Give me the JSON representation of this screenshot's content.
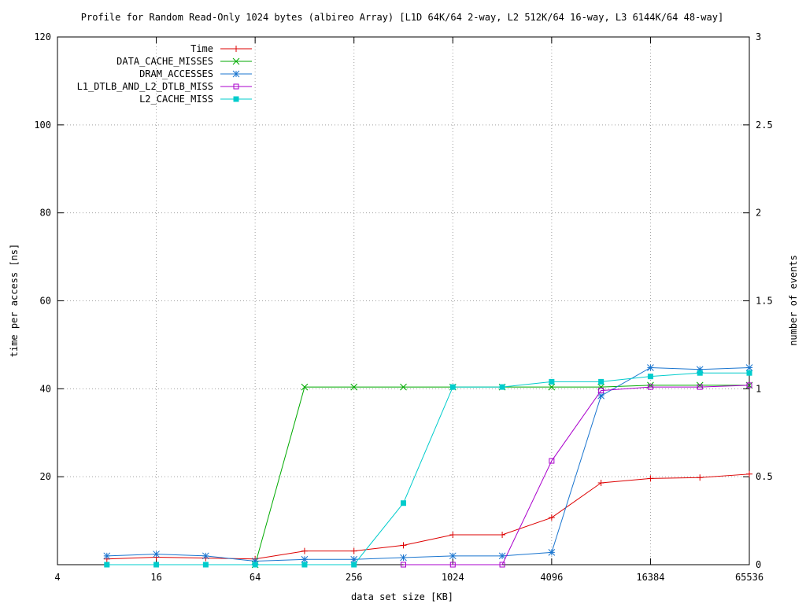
{
  "chart_data": {
    "type": "line",
    "title": "Profile for Random Read-Only 1024 bytes (albireo Array) [L1D 64K/64 2-way, L2 512K/64 16-way, L3 6144K/64 48-way]",
    "xlabel": "data set size [KB]",
    "ylabel": "time per access [ns]",
    "y2label": "number of events",
    "xscale": "log2",
    "xlim": [
      4,
      65536
    ],
    "ylim": [
      0,
      120
    ],
    "y2lim": [
      0,
      3
    ],
    "x_ticks": [
      "4",
      "16",
      "64",
      "256",
      "1024",
      "4096",
      "16384",
      "65536"
    ],
    "y_ticks": [
      "20",
      "40",
      "60",
      "80",
      "100",
      "120"
    ],
    "y2_ticks": [
      "0",
      "0.5",
      "1",
      "1.5",
      "2",
      "2.5",
      "3"
    ],
    "grid": true,
    "legend_position": "top-left",
    "x": [
      8,
      16,
      32,
      64,
      128,
      256,
      512,
      1024,
      2048,
      4096,
      8192,
      16384,
      32768,
      65536
    ],
    "series": [
      {
        "name": "Time",
        "axis": "y",
        "color": "#dd0000",
        "marker": "plus",
        "values": [
          1.3,
          1.7,
          1.5,
          1.3,
          3.1,
          3.1,
          4.4,
          6.8,
          6.8,
          10.7,
          18.6,
          19.6,
          19.8,
          20.6
        ]
      },
      {
        "name": "DATA_CACHE_MISSES",
        "axis": "y2",
        "color": "#00aa00",
        "marker": "x",
        "values": [
          null,
          null,
          null,
          0.0,
          1.01,
          1.01,
          1.01,
          1.01,
          1.01,
          1.01,
          1.01,
          1.02,
          1.02,
          1.02
        ]
      },
      {
        "name": "DRAM_ACCESSES",
        "axis": "y2",
        "color": "#1a75cf",
        "marker": "star",
        "values": [
          0.05,
          0.06,
          0.05,
          0.02,
          0.03,
          0.03,
          0.04,
          0.05,
          0.05,
          0.07,
          0.96,
          1.12,
          1.11,
          1.12
        ]
      },
      {
        "name": "L1_DTLB_AND_L2_DTLB_MISS",
        "axis": "y2",
        "color": "#aa00cc",
        "marker": "open-square",
        "values": [
          null,
          null,
          null,
          null,
          null,
          null,
          0.0,
          0.0,
          0.0,
          0.59,
          0.99,
          1.01,
          1.01,
          1.02
        ]
      },
      {
        "name": "L2_CACHE_MISS",
        "axis": "y2",
        "color": "#00cccc",
        "marker": "filled-square",
        "values": [
          0.0,
          0.0,
          0.0,
          0.0,
          0.0,
          0.0,
          0.35,
          1.01,
          1.01,
          1.04,
          1.04,
          1.07,
          1.09,
          1.09
        ]
      }
    ]
  }
}
